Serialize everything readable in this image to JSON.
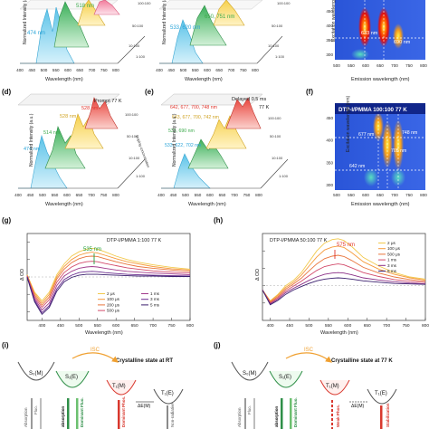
{
  "panel_labels": {
    "d": "(d)",
    "e": "(e)",
    "f": "(f)",
    "g": "(g)",
    "h": "(h)",
    "i": "(i)",
    "j": "(j)"
  },
  "common": {
    "norm_intensity": "Normalized Intensity (a.u.)",
    "wavelength": "Wavelength (nm)",
    "doping": "Doping concentration",
    "delta_od": "Δ OD",
    "emission_wl": "Emission wavelength (nm)",
    "excitation_wl": "Excitation wavelength (nm)",
    "wl_ticks": [
      "400",
      "450",
      "500",
      "550",
      "600",
      "650",
      "700",
      "750",
      "800"
    ],
    "ratio_ticks": [
      "100:100",
      "50:100",
      "10:100",
      "1:100"
    ]
  },
  "top_left": {
    "peak_a": "474 nm",
    "peak_b": "518 nm"
  },
  "top_mid": {
    "peak_a": "533, 620 nm",
    "peak_b": "650, 751 nm"
  },
  "top_right": {
    "annot_a": "633 nm",
    "annot_b": "690 nm",
    "ex_ticks": [
      "450",
      "400",
      "350",
      "300"
    ],
    "em_ticks": [
      "500",
      "550",
      "600",
      "650",
      "700",
      "750",
      "800"
    ]
  },
  "d": {
    "mode": "Prompt 77 K",
    "peaks": [
      "474 nm",
      "514 nm",
      "528 nm",
      "528 nm"
    ],
    "tracks": [
      "100:100",
      "50:100",
      "10:100",
      "1:100"
    ]
  },
  "e": {
    "mode": "Delayed 0.5 ms",
    "temp": "77 K",
    "peaks": [
      "642, 677, 700, 748 nm",
      "643, 677, 700, 742 nm",
      "533, 690 nm",
      "533, 622, 702 nm"
    ],
    "tracks": [
      "100:100",
      "50:100",
      "10:100",
      "1:100"
    ]
  },
  "f": {
    "title": "DTP-I/PMMA 100:100 77 K",
    "annot": [
      "677 nm",
      "705 nm",
      "748 nm",
      "642 nm"
    ],
    "ex_ticks": [
      "450",
      "400",
      "350",
      "300"
    ],
    "em_ticks": [
      "500",
      "550",
      "600",
      "650",
      "700",
      "750",
      "800"
    ]
  },
  "chart_data": [
    {
      "type": "line",
      "panel": "g",
      "title": "DTP-I/PMMA 1:100 77 K",
      "xlabel": "Wavelength (nm)",
      "ylabel": "Δ OD",
      "xlim": [
        360,
        800
      ],
      "ylim": [
        -1.0,
        1.0
      ],
      "annotation": "535 nm",
      "x": [
        360,
        380,
        400,
        420,
        440,
        460,
        480,
        500,
        520,
        535,
        550,
        570,
        600,
        630,
        660,
        700,
        750,
        800
      ],
      "series": [
        {
          "name": "2 μs",
          "color": "#f2c94c",
          "values": [
            0.05,
            -0.35,
            -0.55,
            -0.35,
            0.05,
            0.3,
            0.48,
            0.58,
            0.64,
            0.66,
            0.64,
            0.58,
            0.48,
            0.4,
            0.34,
            0.28,
            0.22,
            0.18
          ]
        },
        {
          "name": "100 μs",
          "color": "#f59a3b",
          "values": [
            0.04,
            -0.38,
            -0.6,
            -0.4,
            0.0,
            0.24,
            0.4,
            0.5,
            0.55,
            0.57,
            0.55,
            0.5,
            0.42,
            0.35,
            0.3,
            0.24,
            0.19,
            0.16
          ]
        },
        {
          "name": "200 μs",
          "color": "#e8743b",
          "values": [
            0.03,
            -0.42,
            -0.65,
            -0.46,
            -0.05,
            0.18,
            0.33,
            0.42,
            0.47,
            0.48,
            0.47,
            0.42,
            0.35,
            0.29,
            0.24,
            0.2,
            0.16,
            0.13
          ]
        },
        {
          "name": "500 μs",
          "color": "#d24b6b",
          "values": [
            0.02,
            -0.46,
            -0.7,
            -0.52,
            -0.12,
            0.1,
            0.23,
            0.31,
            0.35,
            0.36,
            0.35,
            0.31,
            0.26,
            0.21,
            0.18,
            0.14,
            0.11,
            0.09
          ]
        },
        {
          "name": "1 ms",
          "color": "#a23b8c",
          "values": [
            0.01,
            -0.5,
            -0.76,
            -0.6,
            -0.2,
            0.02,
            0.13,
            0.2,
            0.23,
            0.24,
            0.23,
            0.2,
            0.16,
            0.13,
            0.11,
            0.09,
            0.07,
            0.05
          ]
        },
        {
          "name": "3 ms",
          "color": "#6a2c8f",
          "values": [
            0.0,
            -0.54,
            -0.82,
            -0.66,
            -0.28,
            -0.06,
            0.04,
            0.1,
            0.12,
            0.13,
            0.12,
            0.1,
            0.08,
            0.06,
            0.05,
            0.04,
            0.03,
            0.02
          ]
        },
        {
          "name": "5 ms",
          "color": "#3b1f6e",
          "values": [
            -0.01,
            -0.57,
            -0.86,
            -0.7,
            -0.33,
            -0.11,
            -0.01,
            0.04,
            0.06,
            0.06,
            0.06,
            0.05,
            0.04,
            0.03,
            0.02,
            0.02,
            0.01,
            0.01
          ]
        }
      ]
    },
    {
      "type": "line",
      "panel": "h",
      "title": "DTP-I/PMMA 50:100 77 K",
      "xlabel": "Wavelength (nm)",
      "ylabel": "Δ OD",
      "xlim": [
        380,
        800
      ],
      "ylim": [
        -0.8,
        1.2
      ],
      "xticks": [
        "400",
        "450",
        "500",
        "550",
        "600",
        "650",
        "700",
        "750",
        "800"
      ],
      "annotation": "575 nm",
      "x": [
        380,
        400,
        420,
        440,
        460,
        480,
        500,
        520,
        540,
        560,
        575,
        590,
        610,
        640,
        680,
        720,
        760,
        800
      ],
      "series": [
        {
          "name": "2 μs",
          "color": "#f2c94c",
          "values": [
            -0.1,
            -0.35,
            -0.2,
            0.0,
            0.12,
            0.3,
            0.55,
            0.8,
            0.98,
            1.06,
            1.08,
            1.04,
            0.9,
            0.65,
            0.45,
            0.3,
            0.2,
            0.15
          ]
        },
        {
          "name": "100 μs",
          "color": "#f59a3b",
          "values": [
            -0.1,
            -0.36,
            -0.22,
            -0.04,
            0.08,
            0.24,
            0.45,
            0.66,
            0.82,
            0.89,
            0.91,
            0.88,
            0.76,
            0.55,
            0.38,
            0.26,
            0.18,
            0.13
          ]
        },
        {
          "name": "500 μs",
          "color": "#e8743b",
          "values": [
            -0.1,
            -0.38,
            -0.25,
            -0.08,
            0.04,
            0.17,
            0.34,
            0.5,
            0.62,
            0.68,
            0.7,
            0.67,
            0.58,
            0.42,
            0.29,
            0.2,
            0.14,
            0.1
          ]
        },
        {
          "name": "1 ms",
          "color": "#d24b6b",
          "values": [
            -0.1,
            -0.4,
            -0.28,
            -0.12,
            -0.01,
            0.1,
            0.23,
            0.35,
            0.44,
            0.48,
            0.5,
            0.48,
            0.41,
            0.3,
            0.21,
            0.14,
            0.1,
            0.07
          ]
        },
        {
          "name": "3 ms",
          "color": "#8a2f86",
          "values": [
            -0.1,
            -0.42,
            -0.31,
            -0.16,
            -0.06,
            0.03,
            0.12,
            0.2,
            0.26,
            0.29,
            0.3,
            0.29,
            0.25,
            0.18,
            0.13,
            0.09,
            0.06,
            0.04
          ]
        },
        {
          "name": "5 ms",
          "color": "#3b1f6e",
          "values": [
            -0.1,
            -0.44,
            -0.34,
            -0.2,
            -0.1,
            -0.02,
            0.05,
            0.11,
            0.15,
            0.17,
            0.18,
            0.17,
            0.15,
            0.11,
            0.08,
            0.05,
            0.04,
            0.03
          ]
        }
      ]
    }
  ],
  "i": {
    "s0": "S₀(M)",
    "s1": "S₁(E)",
    "t1m": "T₁(M)",
    "t1e": "T₁(E)",
    "isc": "ISC",
    "state": "Crystalline state at RT",
    "dE": "ΔE(M)",
    "labels": [
      "Absorption",
      "Fluo.",
      "absorption",
      "Dominant Fluo.",
      "Dominant Phos.",
      "Non-radiative"
    ]
  },
  "j": {
    "s0": "S₀(M)",
    "s1": "S₁(E)",
    "t1m": "T₁(M)",
    "t1e": "T₁(E)",
    "isc": "ISC",
    "state": "Crystalline state at 77 K",
    "dE": "ΔE(M)",
    "labels": [
      "Absorption",
      "Fluo.",
      "absorption",
      "Dominant Fluo.",
      "Weak Phos.",
      "Stabilization"
    ]
  }
}
